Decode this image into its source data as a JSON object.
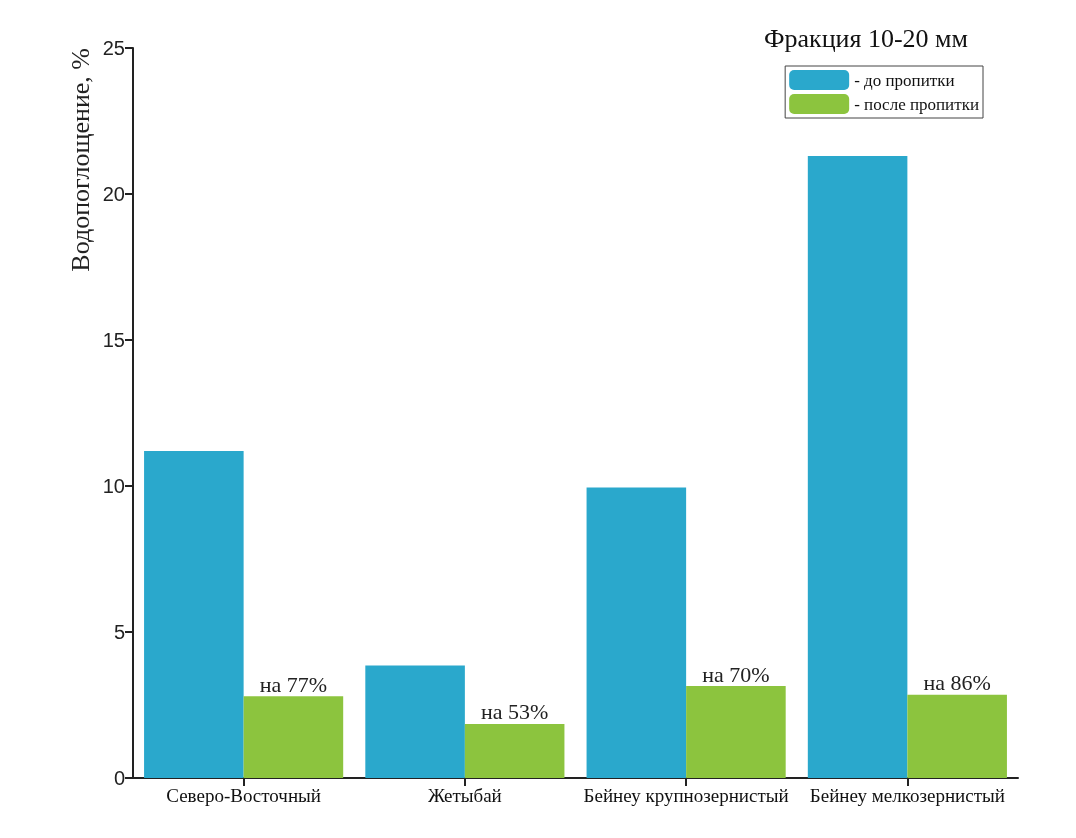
{
  "chart_data": {
    "type": "bar",
    "title": "Фракция 10-20 мм",
    "ylabel": "Водопоглощение, %",
    "categories": [
      "Северо-Восточный",
      "Жетыбай",
      "Бейнеу крупнозернистый",
      "Бейнеу мелкозернистый"
    ],
    "series": [
      {
        "name": "- до пропитки",
        "color": "#2aa8cc",
        "values": [
          11.2,
          3.85,
          9.95,
          21.3
        ]
      },
      {
        "name": "- после пропитки",
        "color": "#8cc43e",
        "values": [
          2.8,
          1.85,
          3.15,
          2.85
        ],
        "value_labels": [
          "на 77%",
          "на 53%",
          "на 70%",
          "на 86%"
        ]
      }
    ],
    "ylim": [
      0,
      25
    ],
    "yticks": [
      0,
      5,
      10,
      15,
      20,
      25
    ],
    "grid": false,
    "legend": "top right"
  }
}
